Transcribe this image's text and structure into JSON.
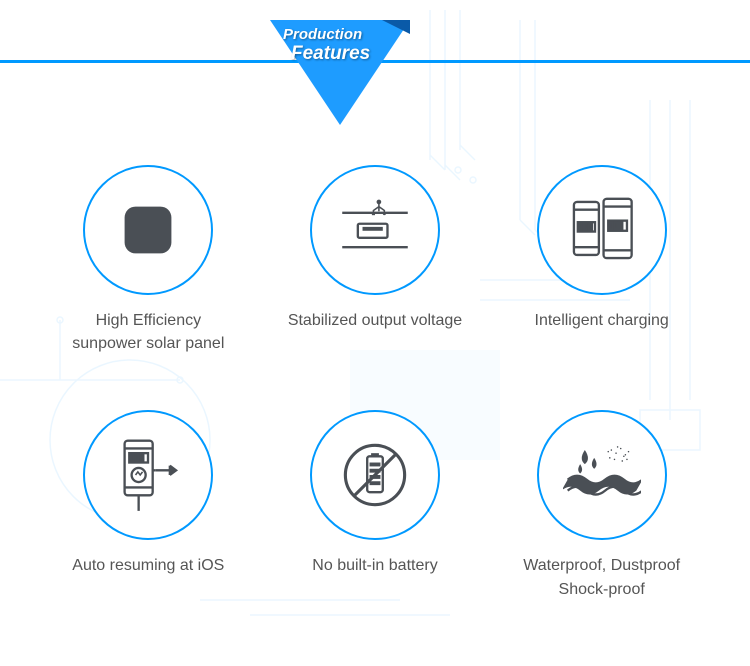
{
  "banner": {
    "line1": "Production",
    "line2": "Features",
    "fill_color": "#1e9cff",
    "shadow_color": "#0a5aa8"
  },
  "accent_color": "#0099ff",
  "icon_stroke": "#4a4f55",
  "text_color": "#555555",
  "circle_border_width": 2,
  "features": [
    {
      "icon": "solar-panel",
      "label": "High Efficiency\nsunpower solar panel"
    },
    {
      "icon": "usb-port",
      "label": "Stabilized output voltage"
    },
    {
      "icon": "two-phones",
      "label": "Intelligent charging"
    },
    {
      "icon": "auto-resume",
      "label": "Auto resuming at iOS"
    },
    {
      "icon": "no-battery",
      "label": "No built-in battery"
    },
    {
      "icon": "waterproof",
      "label": "Waterproof, Dustproof\nShock-proof"
    }
  ]
}
